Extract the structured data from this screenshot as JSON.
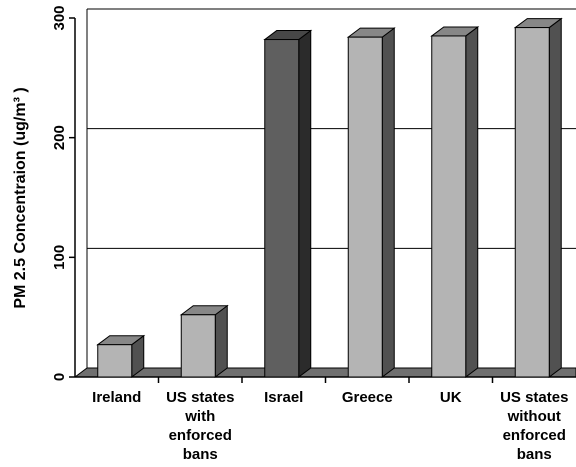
{
  "chart_data": {
    "type": "bar",
    "ylabel": "PM 2.5 Concentraion (ug/m³ )",
    "ylim": [
      0,
      300
    ],
    "y_ticks": [
      0,
      100,
      200,
      300
    ],
    "y_tick_labels": [
      "0",
      "100",
      "200",
      "300"
    ],
    "grid": "horizontal",
    "categories": [
      [
        "Ireland"
      ],
      [
        "US states",
        "with",
        "enforced",
        "bans"
      ],
      [
        "Israel"
      ],
      [
        "Greece"
      ],
      [
        "UK"
      ],
      [
        "US states",
        "without",
        "enforced",
        "bans"
      ]
    ],
    "values": [
      27,
      52,
      282,
      284,
      285,
      292
    ],
    "colors": [
      "#b4b4b4",
      "#b4b4b4",
      "#5f5f5f",
      "#b4b4b4",
      "#b4b4b4",
      "#b4b4b4"
    ]
  }
}
